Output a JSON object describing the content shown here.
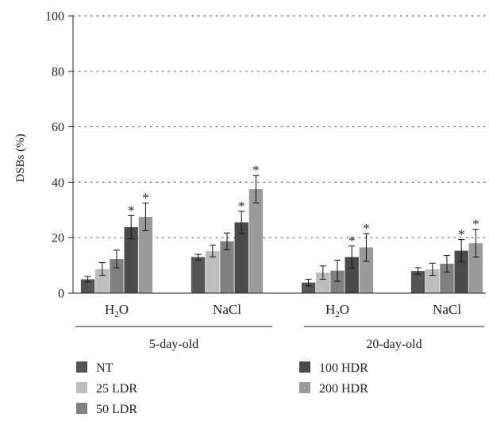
{
  "chart_data": {
    "type": "bar",
    "ylabel": "DSBs (%)",
    "ylim": [
      0,
      100
    ],
    "yticks": [
      0,
      20,
      40,
      60,
      80,
      100
    ],
    "grid": "dotted horizontal",
    "legend_position": "bottom",
    "groups": [
      {
        "label": "5-day-old",
        "categories": [
          {
            "label_main": "H",
            "label_sub": "2",
            "label_tail": "O"
          },
          {
            "label_main": "NaCl",
            "label_sub": "",
            "label_tail": ""
          }
        ]
      },
      {
        "label": "20-day-old",
        "categories": [
          {
            "label_main": "H",
            "label_sub": "2",
            "label_tail": "O"
          },
          {
            "label_main": "NaCl",
            "label_sub": "",
            "label_tail": ""
          }
        ]
      }
    ],
    "significance_marker": "*",
    "series": [
      {
        "name": "NT",
        "color": "#555555",
        "values": [
          5.0,
          13.0,
          3.8,
          8.0
        ],
        "errors": [
          1.0,
          1.0,
          1.2,
          1.2
        ],
        "significant": [
          false,
          false,
          false,
          false
        ]
      },
      {
        "name": "25 LDR",
        "color": "#bdbdbd",
        "values": [
          8.7,
          15.2,
          7.4,
          8.6
        ],
        "errors": [
          2.3,
          2.1,
          2.4,
          2.2
        ],
        "significant": [
          false,
          false,
          false,
          false
        ]
      },
      {
        "name": "50 LDR",
        "color": "#808080",
        "values": [
          12.3,
          18.7,
          8.1,
          10.6
        ],
        "errors": [
          3.2,
          3.0,
          3.8,
          3.0
        ],
        "significant": [
          false,
          false,
          false,
          false
        ]
      },
      {
        "name": "100 HDR",
        "color": "#4a4a4a",
        "values": [
          23.8,
          25.5,
          13.0,
          15.3
        ],
        "errors": [
          4.2,
          4.0,
          4.0,
          4.0
        ],
        "significant": [
          true,
          true,
          true,
          true
        ]
      },
      {
        "name": "200 HDR",
        "color": "#9a9a9a",
        "values": [
          27.5,
          37.5,
          16.5,
          18.0
        ],
        "errors": [
          5.0,
          5.0,
          5.0,
          5.0
        ],
        "significant": [
          true,
          true,
          true,
          true
        ]
      }
    ]
  }
}
